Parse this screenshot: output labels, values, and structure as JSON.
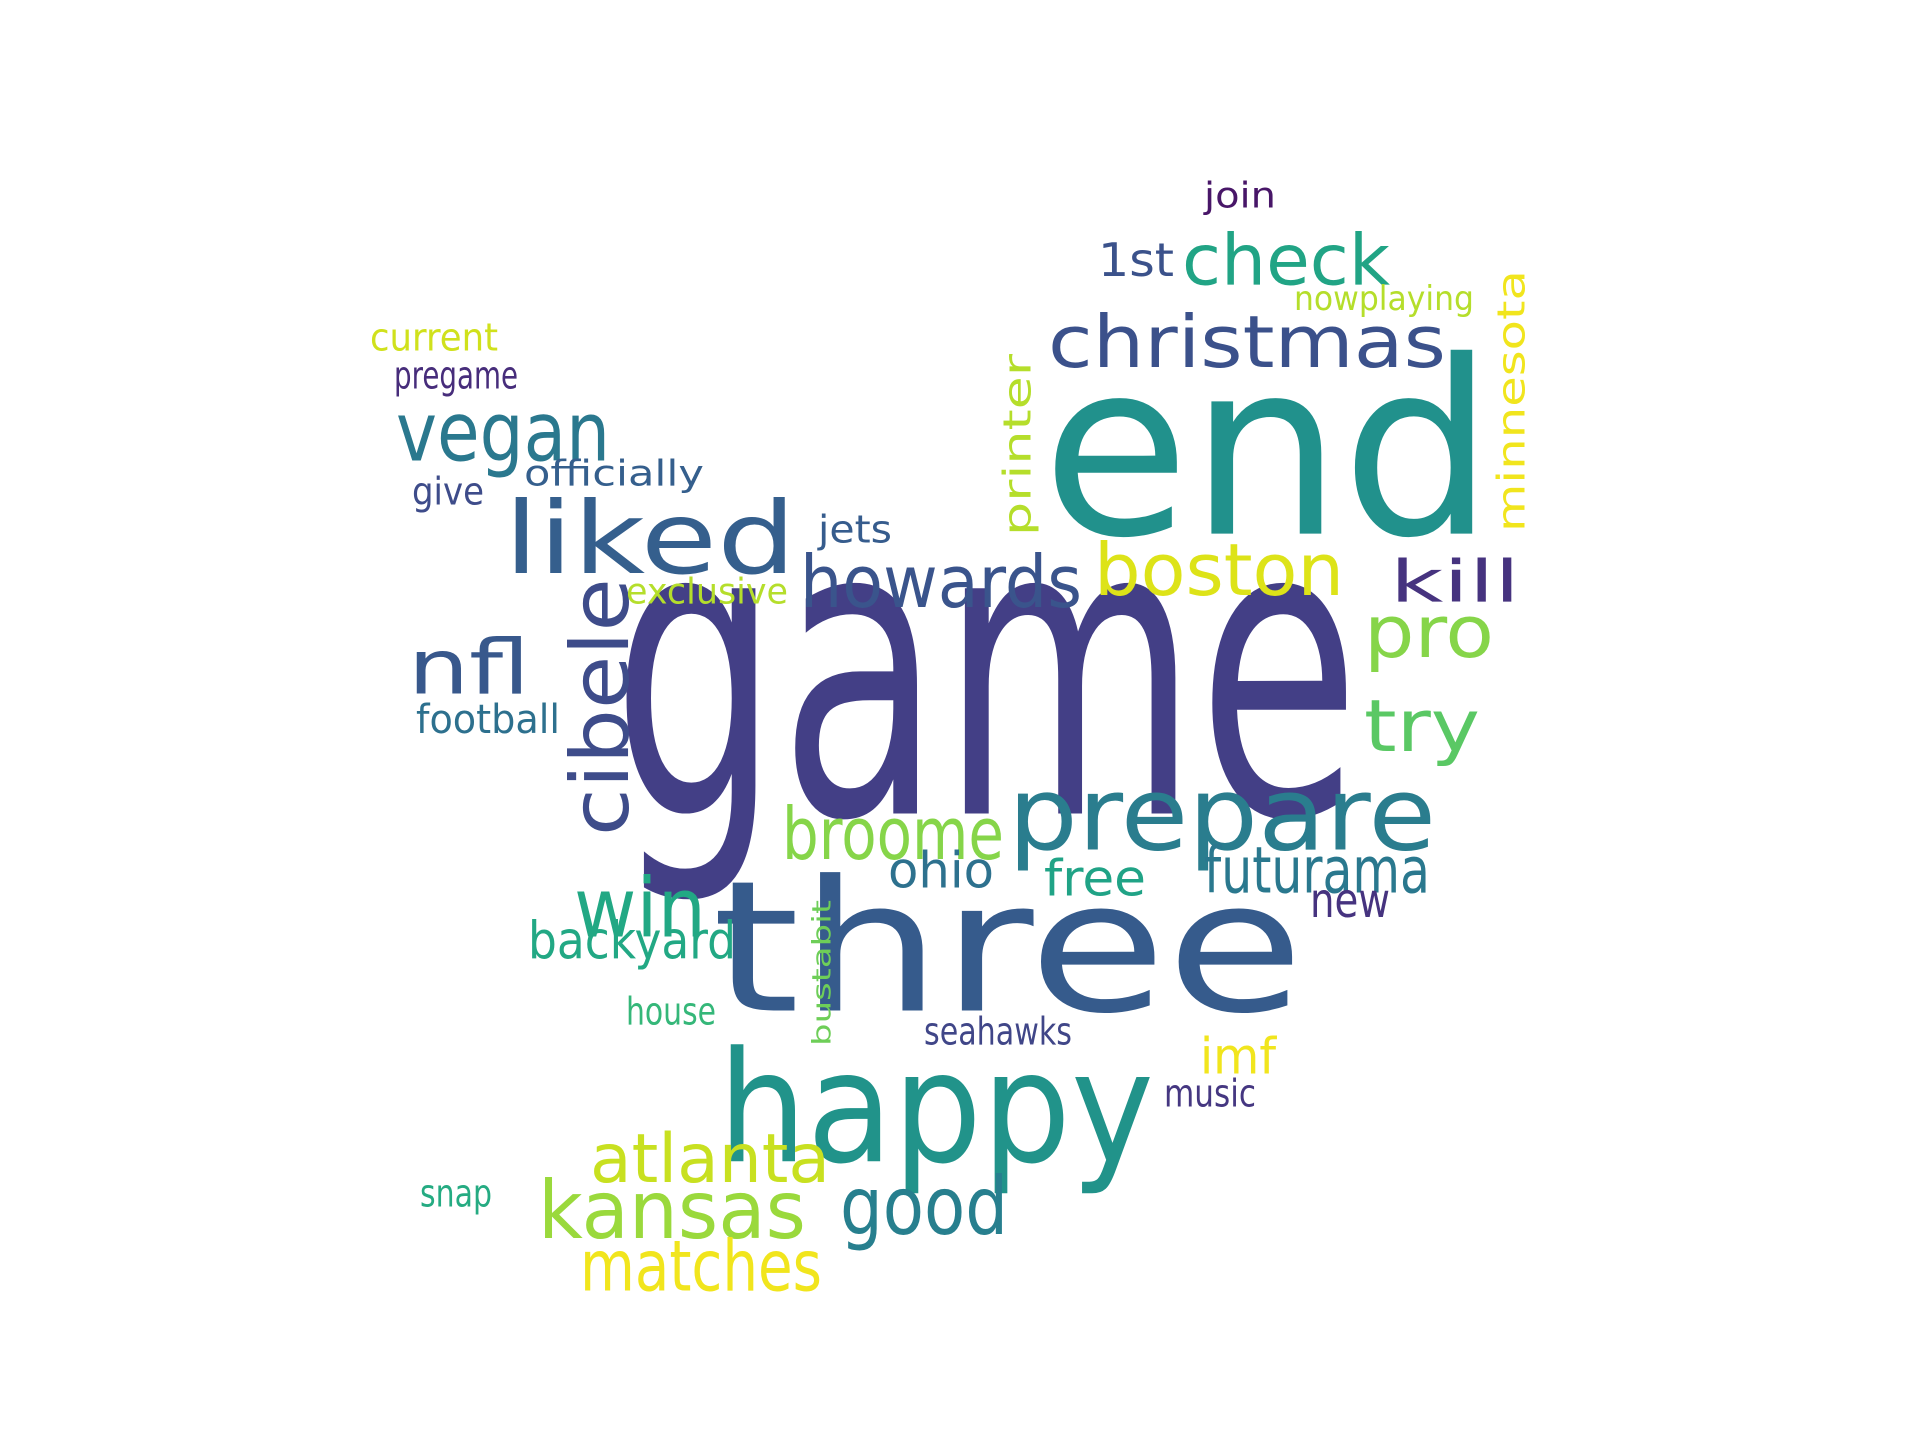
{
  "wordcloud": {
    "words": [
      {
        "text": "game",
        "color": "#433f86"
      },
      {
        "text": "end",
        "color": "#21918c"
      },
      {
        "text": "three",
        "color": "#365b8c"
      },
      {
        "text": "happy",
        "color": "#21938a"
      },
      {
        "text": "prepare",
        "color": "#2a7d8e"
      },
      {
        "text": "liked",
        "color": "#355f8d"
      },
      {
        "text": "christmas",
        "color": "#3b518b"
      },
      {
        "text": "check",
        "color": "#21a485"
      },
      {
        "text": "boston",
        "color": "#dde318"
      },
      {
        "text": "howards",
        "color": "#3a548c"
      },
      {
        "text": "vegan",
        "color": "#2a788e"
      },
      {
        "text": "cibele",
        "color": "#3e4c8a"
      },
      {
        "text": "kansas",
        "color": "#9ad93c"
      },
      {
        "text": "minnesota",
        "color": "#f1e51d"
      },
      {
        "text": "pro",
        "color": "#86d549"
      },
      {
        "text": "broome",
        "color": "#86d549"
      },
      {
        "text": "try",
        "color": "#5ac864"
      },
      {
        "text": "nfl",
        "color": "#38588c"
      },
      {
        "text": "kill",
        "color": "#46337f"
      },
      {
        "text": "win",
        "color": "#22a884"
      },
      {
        "text": "good",
        "color": "#277f8e"
      },
      {
        "text": "atlanta",
        "color": "#c8e020"
      },
      {
        "text": "matches",
        "color": "#f1e51d"
      },
      {
        "text": "futurama",
        "color": "#2a788e"
      },
      {
        "text": "printer",
        "color": "#b5de2b"
      },
      {
        "text": "backyard",
        "color": "#22a884"
      },
      {
        "text": "ohio",
        "color": "#2d718e"
      },
      {
        "text": "free",
        "color": "#20a386"
      },
      {
        "text": "new",
        "color": "#46337f"
      },
      {
        "text": "1st",
        "color": "#3b528b"
      },
      {
        "text": "imf",
        "color": "#f1e51d"
      },
      {
        "text": "join",
        "color": "#481668"
      },
      {
        "text": "nowplaying",
        "color": "#b5de2b"
      },
      {
        "text": "current",
        "color": "#d0e11c"
      },
      {
        "text": "pregame",
        "color": "#472d7b"
      },
      {
        "text": "officially",
        "color": "#355f8d"
      },
      {
        "text": "give",
        "color": "#3e4c8a"
      },
      {
        "text": "jets",
        "color": "#365c8d"
      },
      {
        "text": "exclusive",
        "color": "#b5de2b"
      },
      {
        "text": "football",
        "color": "#2d708e"
      },
      {
        "text": "bustabit",
        "color": "#6ece58"
      },
      {
        "text": "house",
        "color": "#35b779"
      },
      {
        "text": "seahawks",
        "color": "#404688"
      },
      {
        "text": "music",
        "color": "#453781"
      },
      {
        "text": "snap",
        "color": "#25ab82"
      }
    ]
  }
}
